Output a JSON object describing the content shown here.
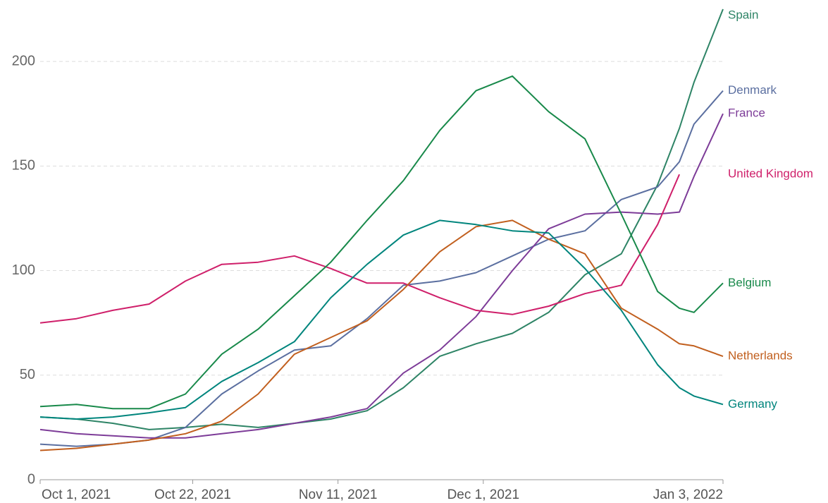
{
  "chart_data": {
    "type": "line",
    "x": [
      "2021-10-01",
      "2021-10-06",
      "2021-10-11",
      "2021-10-16",
      "2021-10-21",
      "2021-10-26",
      "2021-10-31",
      "2021-11-05",
      "2021-11-10",
      "2021-11-15",
      "2021-11-20",
      "2021-11-25",
      "2021-11-30",
      "2021-12-05",
      "2021-12-10",
      "2021-12-15",
      "2021-12-20",
      "2021-12-25",
      "2021-12-28",
      "2021-12-30",
      "2022-01-03"
    ],
    "series": [
      {
        "name": "Spain",
        "color": "#2e8466",
        "values": [
          30,
          29,
          27,
          24,
          25,
          26.5,
          25,
          27,
          29,
          33,
          44,
          59,
          65,
          70,
          80,
          98,
          108,
          141,
          168,
          190,
          225
        ]
      },
      {
        "name": "Denmark",
        "color": "#5b6fa0",
        "values": [
          17,
          16,
          17,
          19,
          25,
          41,
          52,
          62,
          64,
          77,
          93,
          95,
          99,
          107,
          115,
          119,
          134,
          140,
          152,
          170,
          186
        ]
      },
      {
        "name": "France",
        "color": "#7d3c98",
        "values": [
          24,
          22,
          21,
          20,
          20,
          22,
          24,
          27,
          30,
          34,
          51,
          62,
          78,
          100,
          120,
          127,
          128,
          127,
          128,
          145,
          175
        ]
      },
      {
        "name": "United Kingdom",
        "color": "#cf1f6a",
        "values": [
          75,
          77,
          81,
          84,
          95,
          103,
          104,
          107,
          101,
          94,
          94,
          87,
          81,
          79,
          83,
          89,
          93,
          122,
          146,
          null,
          null
        ]
      },
      {
        "name": "Belgium",
        "color": "#18894a",
        "values": [
          35,
          36,
          34,
          34,
          41,
          60,
          72,
          88,
          104,
          124,
          143,
          167,
          186,
          193,
          176,
          163,
          127,
          90,
          82,
          80,
          94
        ]
      },
      {
        "name": "Netherlands",
        "color": "#c15f1e",
        "values": [
          14,
          15,
          17,
          19,
          22,
          28,
          41,
          60,
          68,
          76,
          91,
          109,
          121,
          124,
          115,
          108,
          82,
          72,
          65,
          64,
          59
        ]
      },
      {
        "name": "Germany",
        "color": "#00857d",
        "values": [
          30,
          29,
          30,
          32,
          34.5,
          47,
          56,
          66,
          87,
          103,
          117,
          124,
          122,
          119,
          118,
          101,
          81,
          55,
          44,
          40,
          36
        ]
      }
    ],
    "xlim": [
      "2021-10-01",
      "2022-01-03"
    ],
    "xticks": [
      {
        "value": "2021-10-01",
        "label": "Oct 1, 2021"
      },
      {
        "value": "2021-10-22",
        "label": "Oct 22, 2021"
      },
      {
        "value": "2021-11-11",
        "label": "Nov 11, 2021"
      },
      {
        "value": "2021-12-01",
        "label": "Dec 1, 2021"
      },
      {
        "value": "2022-01-03",
        "label": "Jan 3, 2022"
      }
    ],
    "ylim": [
      0,
      225
    ],
    "yticks": [
      0,
      50,
      100,
      150,
      200
    ],
    "grid": true
  }
}
